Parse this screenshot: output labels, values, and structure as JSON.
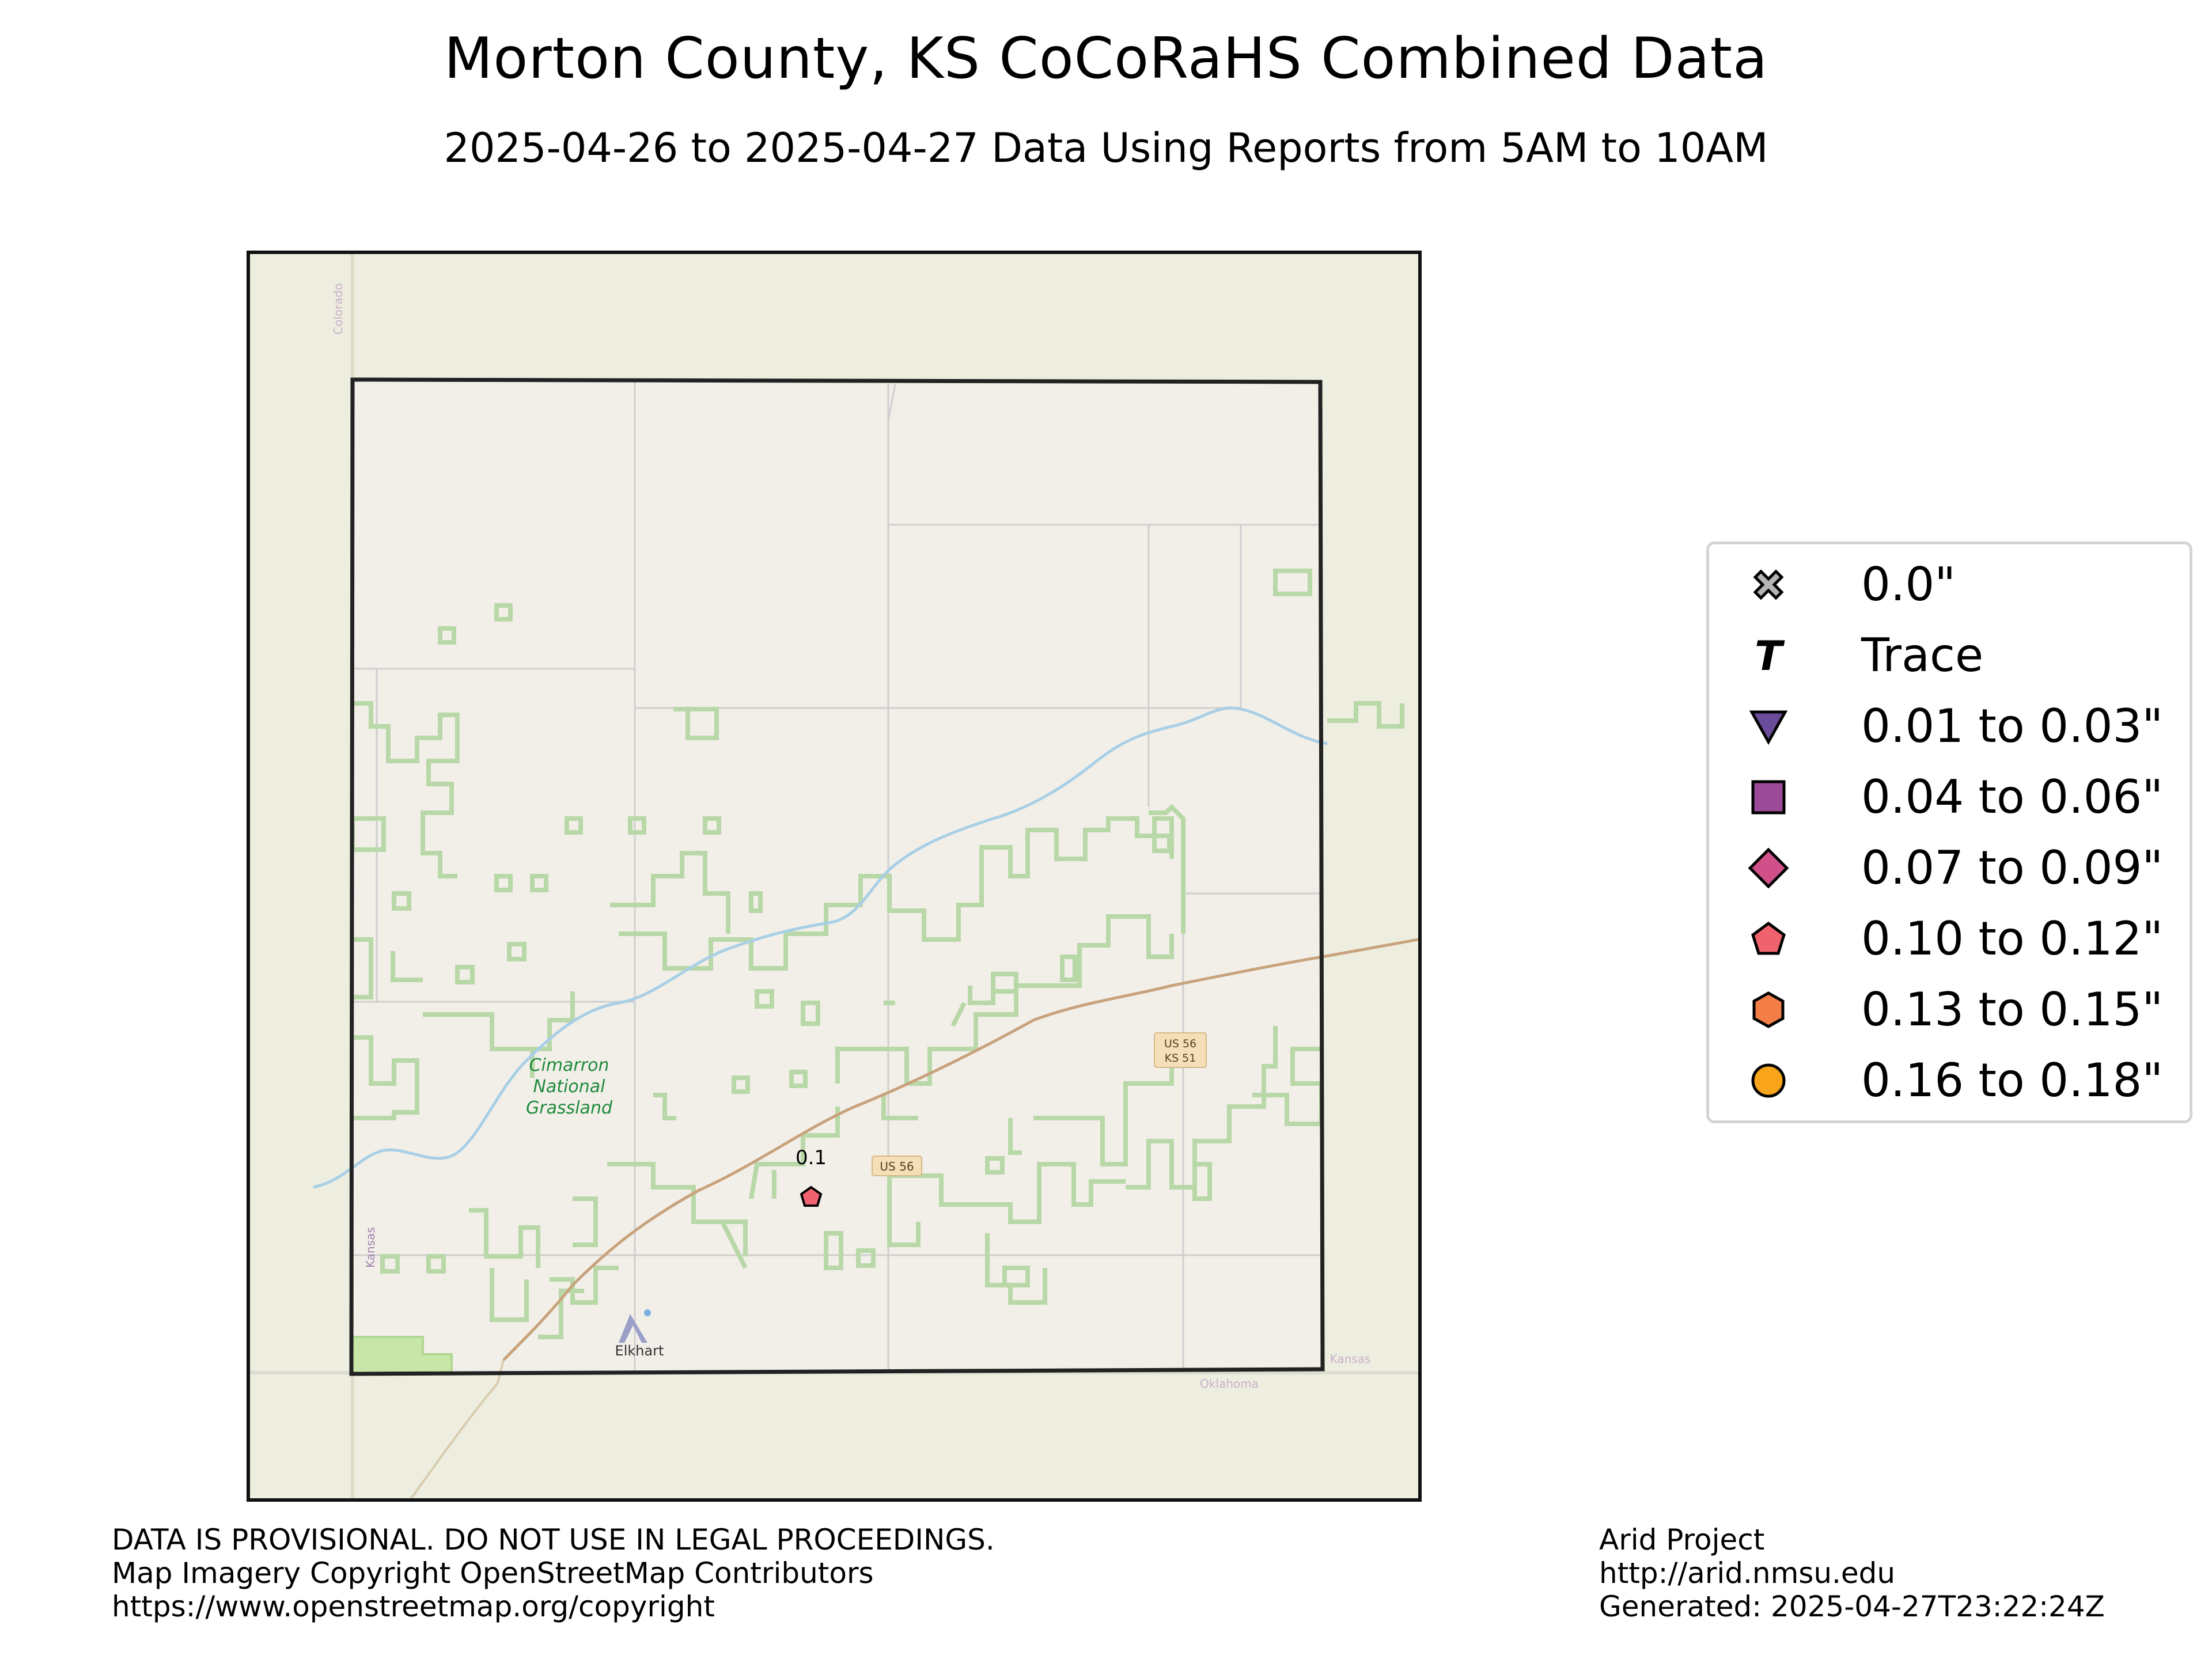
{
  "header": {
    "title": "Morton County, KS CoCoRaHS Combined Data",
    "subtitle": "2025-04-26 to 2025-04-27 Data Using Reports from 5AM to 10AM"
  },
  "map": {
    "labels": {
      "grassland_line1": "Cimarron",
      "grassland_line2": "National",
      "grassland_line3": "Grassland",
      "town": "Elkhart",
      "road_us56": "US 56",
      "road_shield_line1": "US 56",
      "road_shield_line2": "KS 51",
      "state_colorado": "Colorado",
      "state_kansas_west": "Kansas",
      "state_kansas_east": "Kansas",
      "state_oklahoma": "Oklahoma"
    },
    "stations": [
      {
        "value_label": "0.1",
        "category": "0.10 to 0.12\"",
        "color": "#f0636e",
        "symbol": "pentagon"
      }
    ],
    "colors": {
      "outside_land": "#eeeee0",
      "county_fill": "#f2efe9",
      "grassland_outline": "#b8d8a8",
      "river": "#a8cfe6",
      "highway": "#c8a27c",
      "county_border": "#222222"
    }
  },
  "legend": {
    "items": [
      {
        "label": "0.0\"",
        "symbol": "x-icon",
        "color": "#b5b5b5"
      },
      {
        "label": "Trace",
        "symbol": "t-icon",
        "color": "#000000"
      },
      {
        "label": "0.01 to 0.03\"",
        "symbol": "triangle-down",
        "color": "#6b4c9a"
      },
      {
        "label": "0.04 to 0.06\"",
        "symbol": "square",
        "color": "#9b4a97"
      },
      {
        "label": "0.07 to 0.09\"",
        "symbol": "diamond",
        "color": "#d2508a"
      },
      {
        "label": "0.10 to 0.12\"",
        "symbol": "pentagon",
        "color": "#f0636e"
      },
      {
        "label": "0.13 to 0.15\"",
        "symbol": "hexagon",
        "color": "#f47e47"
      },
      {
        "label": "0.16 to 0.18\"",
        "symbol": "circle",
        "color": "#f8a51c"
      }
    ]
  },
  "footer": {
    "left_line1": "DATA IS PROVISIONAL. DO NOT USE IN LEGAL PROCEEDINGS.",
    "left_line2": "Map Imagery Copyright OpenStreetMap Contributors",
    "left_line3": "https://www.openstreetmap.org/copyright",
    "right_line1": "Arid Project",
    "right_line2": "http://arid.nmsu.edu",
    "right_line3": "Generated: 2025-04-27T23:22:24Z"
  }
}
